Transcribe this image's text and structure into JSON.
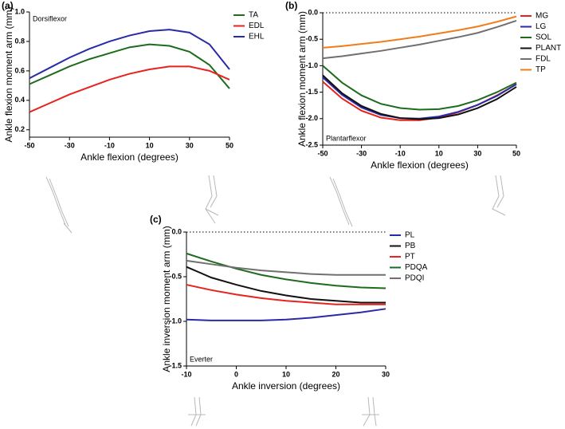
{
  "chart_data": [
    {
      "type": "line",
      "panel_label": "(a)",
      "annotation": "Dorsiflexor",
      "x_label": "Ankle flexion (degrees)",
      "y_label": "Ankle flexion moment arm (mm)",
      "x": [
        -50,
        -40,
        -30,
        -20,
        -10,
        0,
        10,
        20,
        30,
        40,
        50
      ],
      "series": [
        {
          "name": "TA",
          "color": "#1e6b1e",
          "values": [
            0.51,
            0.57,
            0.63,
            0.68,
            0.72,
            0.76,
            0.78,
            0.77,
            0.73,
            0.64,
            0.48
          ]
        },
        {
          "name": "EDL",
          "color": "#e8221e",
          "values": [
            0.32,
            0.38,
            0.44,
            0.49,
            0.54,
            0.58,
            0.61,
            0.63,
            0.63,
            0.6,
            0.54
          ]
        },
        {
          "name": "EHL",
          "color": "#2a2aa8",
          "values": [
            0.55,
            0.62,
            0.69,
            0.75,
            0.8,
            0.84,
            0.87,
            0.88,
            0.86,
            0.78,
            0.61
          ]
        }
      ],
      "xlim": [
        -50,
        50
      ],
      "xticks": [
        -50,
        -30,
        -10,
        10,
        30,
        50
      ],
      "ylim": [
        0.15,
        1.0
      ],
      "yticks": [
        0.2,
        0.4,
        0.6,
        0.8,
        {
          "value": 1.0,
          "label": "1.0"
        }
      ],
      "zero_line": false,
      "legend": "right-top"
    },
    {
      "type": "line",
      "panel_label": "(b)",
      "annotation": "Plantarflexor",
      "x_label": "Ankle flexion (degrees)",
      "y_label": "Ankle flexion moment arm (mm)",
      "x": [
        -50,
        -40,
        -30,
        -20,
        -10,
        0,
        10,
        20,
        30,
        40,
        50
      ],
      "series": [
        {
          "name": "MG",
          "color": "#e8221e",
          "values": [
            -1.3,
            -1.62,
            -1.85,
            -1.98,
            -2.03,
            -2.03,
            -1.98,
            -1.88,
            -1.74,
            -1.56,
            -1.35
          ]
        },
        {
          "name": "LG",
          "color": "#2a2aa8",
          "values": [
            -1.22,
            -1.55,
            -1.79,
            -1.93,
            -1.99,
            -2.0,
            -1.96,
            -1.87,
            -1.74,
            -1.57,
            -1.35
          ]
        },
        {
          "name": "SOL",
          "color": "#1e6b1e",
          "values": [
            -1.0,
            -1.32,
            -1.56,
            -1.72,
            -1.8,
            -1.83,
            -1.82,
            -1.76,
            -1.65,
            -1.5,
            -1.32
          ]
        },
        {
          "name": "PLANT",
          "color": "#111111",
          "values": [
            -1.18,
            -1.52,
            -1.76,
            -1.91,
            -1.99,
            -2.01,
            -1.99,
            -1.92,
            -1.8,
            -1.63,
            -1.4
          ]
        },
        {
          "name": "FDL",
          "color": "#707070",
          "values": [
            -0.86,
            -0.82,
            -0.77,
            -0.72,
            -0.66,
            -0.6,
            -0.53,
            -0.46,
            -0.38,
            -0.27,
            -0.15
          ]
        },
        {
          "name": "TP",
          "color": "#f07d1a",
          "values": [
            -0.66,
            -0.63,
            -0.59,
            -0.55,
            -0.5,
            -0.45,
            -0.39,
            -0.33,
            -0.26,
            -0.17,
            -0.07
          ]
        }
      ],
      "xlim": [
        -50,
        50
      ],
      "xticks": [
        -50,
        -30,
        -10,
        10,
        30,
        50
      ],
      "ylim": [
        -2.5,
        0
      ],
      "yticks": [
        -2.5,
        {
          "value": -2,
          "label": "-2.0"
        },
        -1.5,
        {
          "value": -1,
          "label": "-1.0"
        },
        -0.5,
        {
          "value": 0,
          "label": "0.0"
        }
      ],
      "zero_line": true,
      "legend": "right-top"
    },
    {
      "type": "line",
      "panel_label": "(c)",
      "annotation": "Everter",
      "x_label": "Ankle inversion (degrees)",
      "y_label": "Ankle inversion moment arm (mm)",
      "x": [
        -10,
        -5,
        0,
        5,
        10,
        15,
        20,
        25,
        30
      ],
      "series": [
        {
          "name": "PL",
          "color": "#2a2aa8",
          "values": [
            -0.98,
            -0.99,
            -0.99,
            -0.99,
            -0.98,
            -0.96,
            -0.93,
            -0.9,
            -0.86
          ]
        },
        {
          "name": "PB",
          "color": "#111111",
          "values": [
            -0.39,
            -0.51,
            -0.59,
            -0.66,
            -0.71,
            -0.75,
            -0.77,
            -0.79,
            -0.79
          ]
        },
        {
          "name": "PT",
          "color": "#e8221e",
          "values": [
            -0.59,
            -0.65,
            -0.7,
            -0.74,
            -0.77,
            -0.79,
            -0.81,
            -0.81,
            -0.81
          ]
        },
        {
          "name": "PDQA",
          "color": "#1e6b1e",
          "values": [
            -0.24,
            -0.33,
            -0.41,
            -0.48,
            -0.53,
            -0.57,
            -0.6,
            -0.62,
            -0.63
          ]
        },
        {
          "name": "PDQI",
          "color": "#707070",
          "values": [
            -0.32,
            -0.36,
            -0.4,
            -0.43,
            -0.45,
            -0.47,
            -0.48,
            -0.48,
            -0.48
          ]
        }
      ],
      "xlim": [
        -10,
        30
      ],
      "xticks": [
        -10,
        0,
        10,
        20,
        30
      ],
      "ylim": [
        -1.5,
        0
      ],
      "yticks": [
        -1.5,
        {
          "value": -1,
          "label": "-1.0"
        },
        -0.5,
        {
          "value": 0,
          "label": "0.0"
        }
      ],
      "zero_line": true,
      "legend": "right-top"
    }
  ]
}
